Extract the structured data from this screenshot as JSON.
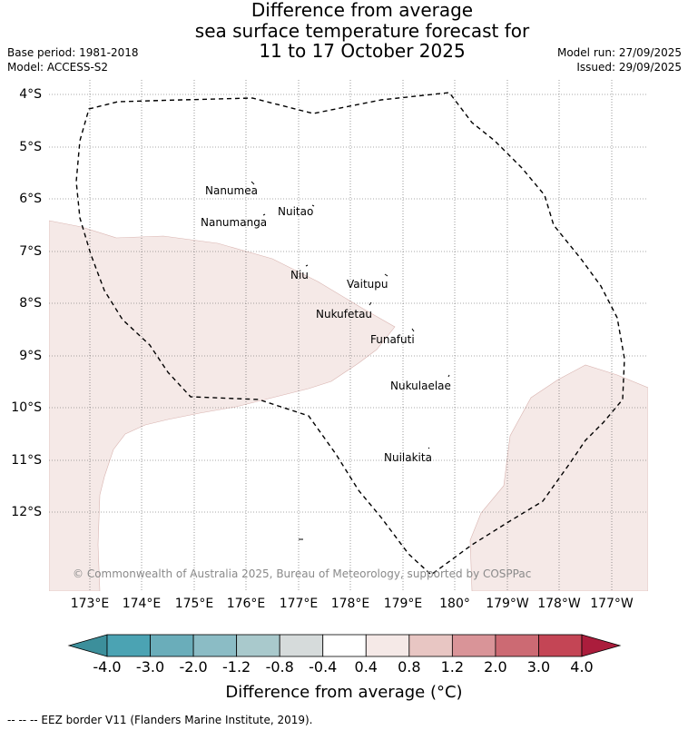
{
  "title": {
    "line1": "Difference from average",
    "line2": "sea surface temperature forecast for",
    "line3": "11 to 17 October 2025"
  },
  "meta": {
    "base_period": "Base period: 1981-2018",
    "model": "Model: ACCESS-S2",
    "model_run": "Model run: 27/09/2025",
    "issued": "Issued: 29/09/2025"
  },
  "axes": {
    "lat_labels": [
      "4°S",
      "5°S",
      "6°S",
      "7°S",
      "8°S",
      "9°S",
      "10°S",
      "11°S",
      "12°S"
    ],
    "lon_labels": [
      "173°E",
      "174°E",
      "175°E",
      "176°E",
      "177°E",
      "178°E",
      "179°E",
      "180°",
      "179°W",
      "178°W",
      "177°W"
    ]
  },
  "islands": [
    "Nanumea",
    "Nuitao",
    "Nanumanga",
    "Niu",
    "Vaitupu",
    "Nukufetau",
    "Funafuti",
    "Nukulaelae",
    "Nuilakita"
  ],
  "copyright": "© Commonwealth of Australia 2025, Bureau of Meteorology, supported by COSPPac",
  "colorbar": {
    "labels": [
      "-4.0",
      "-3.0",
      "-2.0",
      "-1.2",
      "-0.8",
      "-0.4",
      "0.4",
      "0.8",
      "1.2",
      "2.0",
      "3.0",
      "4.0"
    ],
    "colors": [
      "#3c8f9b",
      "#4ba3b3",
      "#6aadba",
      "#8bbcc5",
      "#a9c9cc",
      "#d6dbdb",
      "#ffffff",
      "#f5e9e7",
      "#e8c6c3",
      "#d99498",
      "#cc6a73",
      "#c44555",
      "#ab1d3c"
    ],
    "title": "Difference from average (°C)"
  },
  "legend_note": "--  --  -- EEZ border V11 (Flanders Marine Institute, 2019)."
}
